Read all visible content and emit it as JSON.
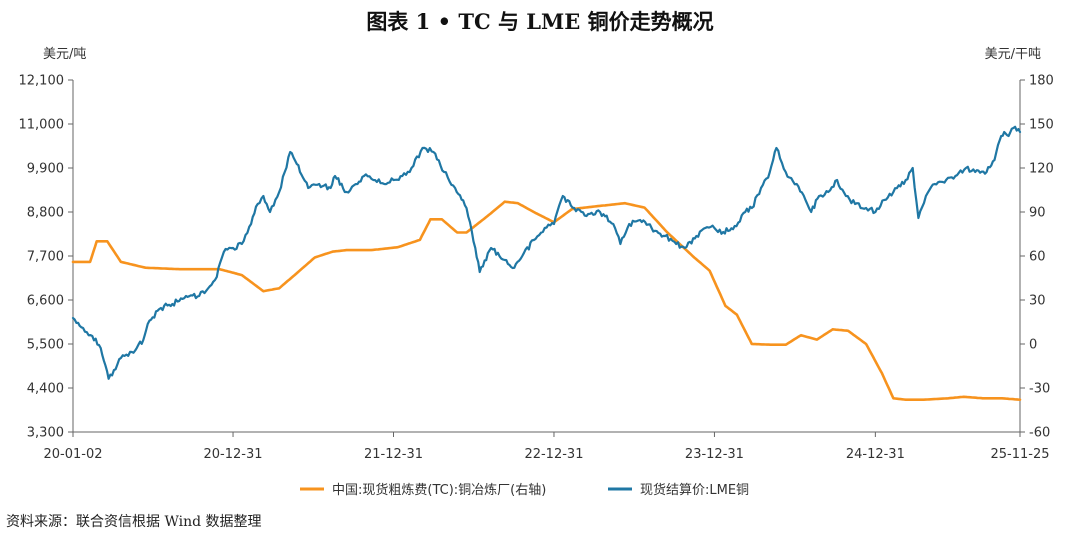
{
  "title": "图表 1 • TC 与 LME 铜价走势概况",
  "source": "资料来源：联合资信根据 Wind 数据整理",
  "chart_data": {
    "type": "line",
    "title": "图表 1 • TC 与 LME 铜价走势概况",
    "y_left_unit": "美元/吨",
    "y_right_unit": "美元/干吨",
    "x_ticks": [
      "20-01-02",
      "20-12-31",
      "21-12-31",
      "22-12-31",
      "23-12-31",
      "24-12-31",
      "25-11-25"
    ],
    "y_left_ticks": [
      "3,300",
      "4,400",
      "5,500",
      "6,600",
      "7,700",
      "8,800",
      "9,900",
      "11,000",
      "12,100"
    ],
    "y_right_ticks": [
      "-60",
      "-30",
      "0",
      "30",
      "60",
      "90",
      "120",
      "150",
      "180"
    ],
    "y_left_range": [
      3300,
      12100
    ],
    "y_right_range": [
      -60,
      180
    ],
    "x_range": [
      "2020-01-02",
      "2025-11-25"
    ],
    "legend_position": "bottom",
    "grid": false,
    "series": [
      {
        "name": "中国:现货粗炼费(TC):铜冶炼厂(右轴)",
        "axis": "right",
        "color": "#f7931e",
        "x": [
          "2020-01-02",
          "2020-02-10",
          "2020-02-25",
          "2020-03-20",
          "2020-04-20",
          "2020-06-15",
          "2020-09-01",
          "2020-12-01",
          "2021-01-20",
          "2021-03-10",
          "2021-04-15",
          "2021-05-20",
          "2021-07-05",
          "2021-08-15",
          "2021-09-15",
          "2021-11-10",
          "2022-01-10",
          "2022-03-01",
          "2022-03-25",
          "2022-04-20",
          "2022-05-25",
          "2022-06-15",
          "2022-08-01",
          "2022-09-10",
          "2022-10-10",
          "2022-11-15",
          "2022-12-31",
          "2023-02-10",
          "2023-04-10",
          "2023-06-10",
          "2023-07-25",
          "2023-09-15",
          "2023-11-15",
          "2023-12-20",
          "2024-01-25",
          "2024-02-20",
          "2024-03-25",
          "2024-05-10",
          "2024-06-10",
          "2024-07-15",
          "2024-08-20",
          "2024-09-25",
          "2024-10-30",
          "2024-12-10",
          "2025-01-15",
          "2025-02-10",
          "2025-03-10",
          "2025-04-20",
          "2025-06-15",
          "2025-07-20",
          "2025-09-01",
          "2025-10-15",
          "2025-11-25"
        ],
        "values": [
          56,
          56,
          70,
          70,
          56,
          52,
          51,
          51,
          47,
          36,
          38,
          47,
          59,
          63,
          64,
          64,
          66,
          71,
          85,
          85,
          76,
          76,
          87,
          97,
          96,
          90,
          83,
          92,
          94,
          96,
          93,
          76,
          59,
          50,
          26,
          20,
          0,
          -0.5,
          -0.5,
          6,
          3,
          10,
          9,
          0,
          -20,
          -37,
          -38,
          -38,
          -37,
          -36,
          -37,
          -37,
          -38
        ]
      },
      {
        "name": "现货结算价:LME铜",
        "axis": "left",
        "color": "#1f77a4",
        "x": [
          "2020-01-02",
          "2020-01-25",
          "2020-02-15",
          "2020-03-05",
          "2020-03-23",
          "2020-04-20",
          "2020-05-15",
          "2020-06-10",
          "2020-06-20",
          "2020-07-20",
          "2020-08-15",
          "2020-09-15",
          "2020-10-15",
          "2020-11-20",
          "2020-12-10",
          "2020-12-31",
          "2021-01-20",
          "2021-02-10",
          "2021-02-25",
          "2021-03-10",
          "2021-03-25",
          "2021-04-15",
          "2021-05-10",
          "2021-05-25",
          "2021-06-20",
          "2021-07-15",
          "2021-08-10",
          "2021-08-20",
          "2021-09-15",
          "2021-10-10",
          "2021-10-25",
          "2021-11-15",
          "2021-12-10",
          "2021-12-31",
          "2022-01-20",
          "2022-02-10",
          "2022-03-07",
          "2022-04-01",
          "2022-04-25",
          "2022-05-20",
          "2022-06-15",
          "2022-07-05",
          "2022-07-15",
          "2022-08-10",
          "2022-09-10",
          "2022-09-28",
          "2022-10-20",
          "2022-11-15",
          "2022-12-10",
          "2022-12-31",
          "2023-01-20",
          "2023-02-15",
          "2023-03-15",
          "2023-04-15",
          "2023-05-15",
          "2023-05-31",
          "2023-06-20",
          "2023-07-15",
          "2023-08-10",
          "2023-09-10",
          "2023-10-05",
          "2023-10-25",
          "2023-11-20",
          "2023-12-10",
          "2023-12-31",
          "2024-01-20",
          "2024-02-15",
          "2024-03-10",
          "2024-03-25",
          "2024-04-15",
          "2024-05-05",
          "2024-05-20",
          "2024-06-10",
          "2024-07-05",
          "2024-07-25",
          "2024-08-07",
          "2024-08-25",
          "2024-09-15",
          "2024-10-05",
          "2024-10-25",
          "2024-11-15",
          "2024-12-10",
          "2024-12-31",
          "2025-01-20",
          "2025-02-10",
          "2025-03-10",
          "2025-03-26",
          "2025-04-08",
          "2025-04-25",
          "2025-05-15",
          "2025-06-10",
          "2025-07-01",
          "2025-07-25",
          "2025-08-15",
          "2025-09-10",
          "2025-09-28",
          "2025-10-10",
          "2025-10-20",
          "2025-10-30",
          "2025-11-10",
          "2025-11-25"
        ],
        "values": [
          6150,
          5900,
          5700,
          5400,
          4630,
          5150,
          5300,
          5600,
          6000,
          6400,
          6500,
          6700,
          6700,
          7100,
          7800,
          7900,
          8000,
          8500,
          9000,
          9200,
          8800,
          9300,
          10300,
          10000,
          9400,
          9500,
          9400,
          9700,
          9300,
          9500,
          9700,
          9600,
          9500,
          9600,
          9700,
          9900,
          10400,
          10300,
          9800,
          9400,
          8900,
          7900,
          7300,
          7900,
          7600,
          7400,
          7700,
          8100,
          8400,
          8500,
          9200,
          8900,
          8700,
          8800,
          8500,
          8000,
          8500,
          8600,
          8400,
          8200,
          8000,
          7900,
          8200,
          8400,
          8400,
          8300,
          8450,
          8800,
          8900,
          9400,
          9800,
          10400,
          9800,
          9500,
          9100,
          8800,
          9200,
          9300,
          9600,
          9200,
          9000,
          8900,
          8800,
          9100,
          9300,
          9600,
          9900,
          8650,
          9200,
          9500,
          9600,
          9700,
          9900,
          9800,
          9800,
          10100,
          10600,
          10800,
          10700,
          10900,
          10800
        ]
      }
    ]
  }
}
